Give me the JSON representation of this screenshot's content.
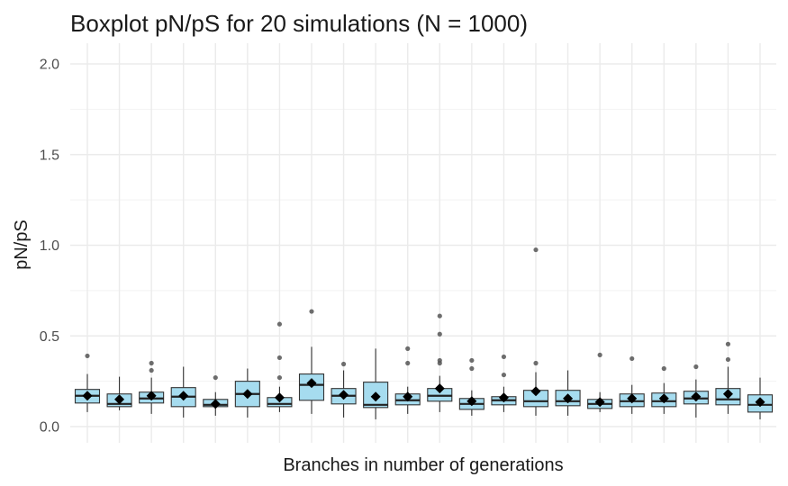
{
  "chart_data": {
    "type": "box",
    "title": "Boxplot pN/pS for 20 simulations (N = 1000)",
    "xlabel": "Branches in number of generations",
    "ylabel": "pN/pS",
    "ylim": [
      -0.1,
      2.05
    ],
    "yticks": [
      0.0,
      0.5,
      1.0,
      1.5,
      2.0
    ],
    "ytick_labels": [
      "0.0",
      "0.5",
      "1.0",
      "1.5",
      "2.0"
    ],
    "grid": true,
    "box_fill": "#a6dcef",
    "box_stroke": "#333333",
    "mean_color": "#000000",
    "outlier_color": "#555555",
    "series": [
      {
        "q1": 0.13,
        "median": 0.17,
        "q3": 0.205,
        "wlow": 0.08,
        "whigh": 0.29,
        "mean": 0.17,
        "outliers": [
          0.39
        ]
      },
      {
        "q1": 0.11,
        "median": 0.125,
        "q3": 0.18,
        "wlow": 0.09,
        "whigh": 0.275,
        "mean": 0.15,
        "outliers": []
      },
      {
        "q1": 0.13,
        "median": 0.155,
        "q3": 0.19,
        "wlow": 0.07,
        "whigh": 0.27,
        "mean": 0.17,
        "outliers": [
          0.31,
          0.35
        ]
      },
      {
        "q1": 0.11,
        "median": 0.165,
        "q3": 0.215,
        "wlow": 0.05,
        "whigh": 0.33,
        "mean": 0.17,
        "outliers": []
      },
      {
        "q1": 0.11,
        "median": 0.12,
        "q3": 0.15,
        "wlow": 0.06,
        "whigh": 0.19,
        "mean": 0.125,
        "outliers": [
          0.27
        ]
      },
      {
        "q1": 0.11,
        "median": 0.18,
        "q3": 0.25,
        "wlow": 0.05,
        "whigh": 0.32,
        "mean": 0.18,
        "outliers": []
      },
      {
        "q1": 0.11,
        "median": 0.125,
        "q3": 0.16,
        "wlow": 0.08,
        "whigh": 0.22,
        "mean": 0.16,
        "outliers": [
          0.27,
          0.38,
          0.565
        ]
      },
      {
        "q1": 0.145,
        "median": 0.23,
        "q3": 0.29,
        "wlow": 0.07,
        "whigh": 0.44,
        "mean": 0.24,
        "outliers": [
          0.635
        ]
      },
      {
        "q1": 0.125,
        "median": 0.17,
        "q3": 0.21,
        "wlow": 0.05,
        "whigh": 0.31,
        "mean": 0.175,
        "outliers": [
          0.345
        ]
      },
      {
        "q1": 0.105,
        "median": 0.12,
        "q3": 0.245,
        "wlow": 0.04,
        "whigh": 0.43,
        "mean": 0.165,
        "outliers": []
      },
      {
        "q1": 0.12,
        "median": 0.145,
        "q3": 0.18,
        "wlow": 0.07,
        "whigh": 0.22,
        "mean": 0.165,
        "outliers": [
          0.35,
          0.43
        ]
      },
      {
        "q1": 0.14,
        "median": 0.17,
        "q3": 0.21,
        "wlow": 0.08,
        "whigh": 0.28,
        "mean": 0.21,
        "outliers": [
          0.35,
          0.365,
          0.51,
          0.61
        ]
      },
      {
        "q1": 0.095,
        "median": 0.125,
        "q3": 0.155,
        "wlow": 0.06,
        "whigh": 0.2,
        "mean": 0.14,
        "outliers": [
          0.32,
          0.365
        ]
      },
      {
        "q1": 0.12,
        "median": 0.145,
        "q3": 0.165,
        "wlow": 0.08,
        "whigh": 0.22,
        "mean": 0.16,
        "outliers": [
          0.285,
          0.385
        ]
      },
      {
        "q1": 0.11,
        "median": 0.14,
        "q3": 0.2,
        "wlow": 0.06,
        "whigh": 0.3,
        "mean": 0.195,
        "outliers": [
          0.35,
          0.975
        ]
      },
      {
        "q1": 0.115,
        "median": 0.14,
        "q3": 0.2,
        "wlow": 0.06,
        "whigh": 0.31,
        "mean": 0.155,
        "outliers": []
      },
      {
        "q1": 0.1,
        "median": 0.125,
        "q3": 0.15,
        "wlow": 0.08,
        "whigh": 0.19,
        "mean": 0.135,
        "outliers": [
          0.395
        ]
      },
      {
        "q1": 0.11,
        "median": 0.14,
        "q3": 0.18,
        "wlow": 0.07,
        "whigh": 0.23,
        "mean": 0.155,
        "outliers": [
          0.375
        ]
      },
      {
        "q1": 0.11,
        "median": 0.14,
        "q3": 0.185,
        "wlow": 0.07,
        "whigh": 0.24,
        "mean": 0.155,
        "outliers": [
          0.32
        ]
      },
      {
        "q1": 0.125,
        "median": 0.155,
        "q3": 0.195,
        "wlow": 0.05,
        "whigh": 0.26,
        "mean": 0.165,
        "outliers": [
          0.33
        ]
      },
      {
        "q1": 0.12,
        "median": 0.15,
        "q3": 0.21,
        "wlow": 0.07,
        "whigh": 0.33,
        "mean": 0.18,
        "outliers": [
          0.37,
          0.455
        ]
      },
      {
        "q1": 0.08,
        "median": 0.12,
        "q3": 0.175,
        "wlow": 0.04,
        "whigh": 0.27,
        "mean": 0.135,
        "outliers": []
      }
    ]
  }
}
